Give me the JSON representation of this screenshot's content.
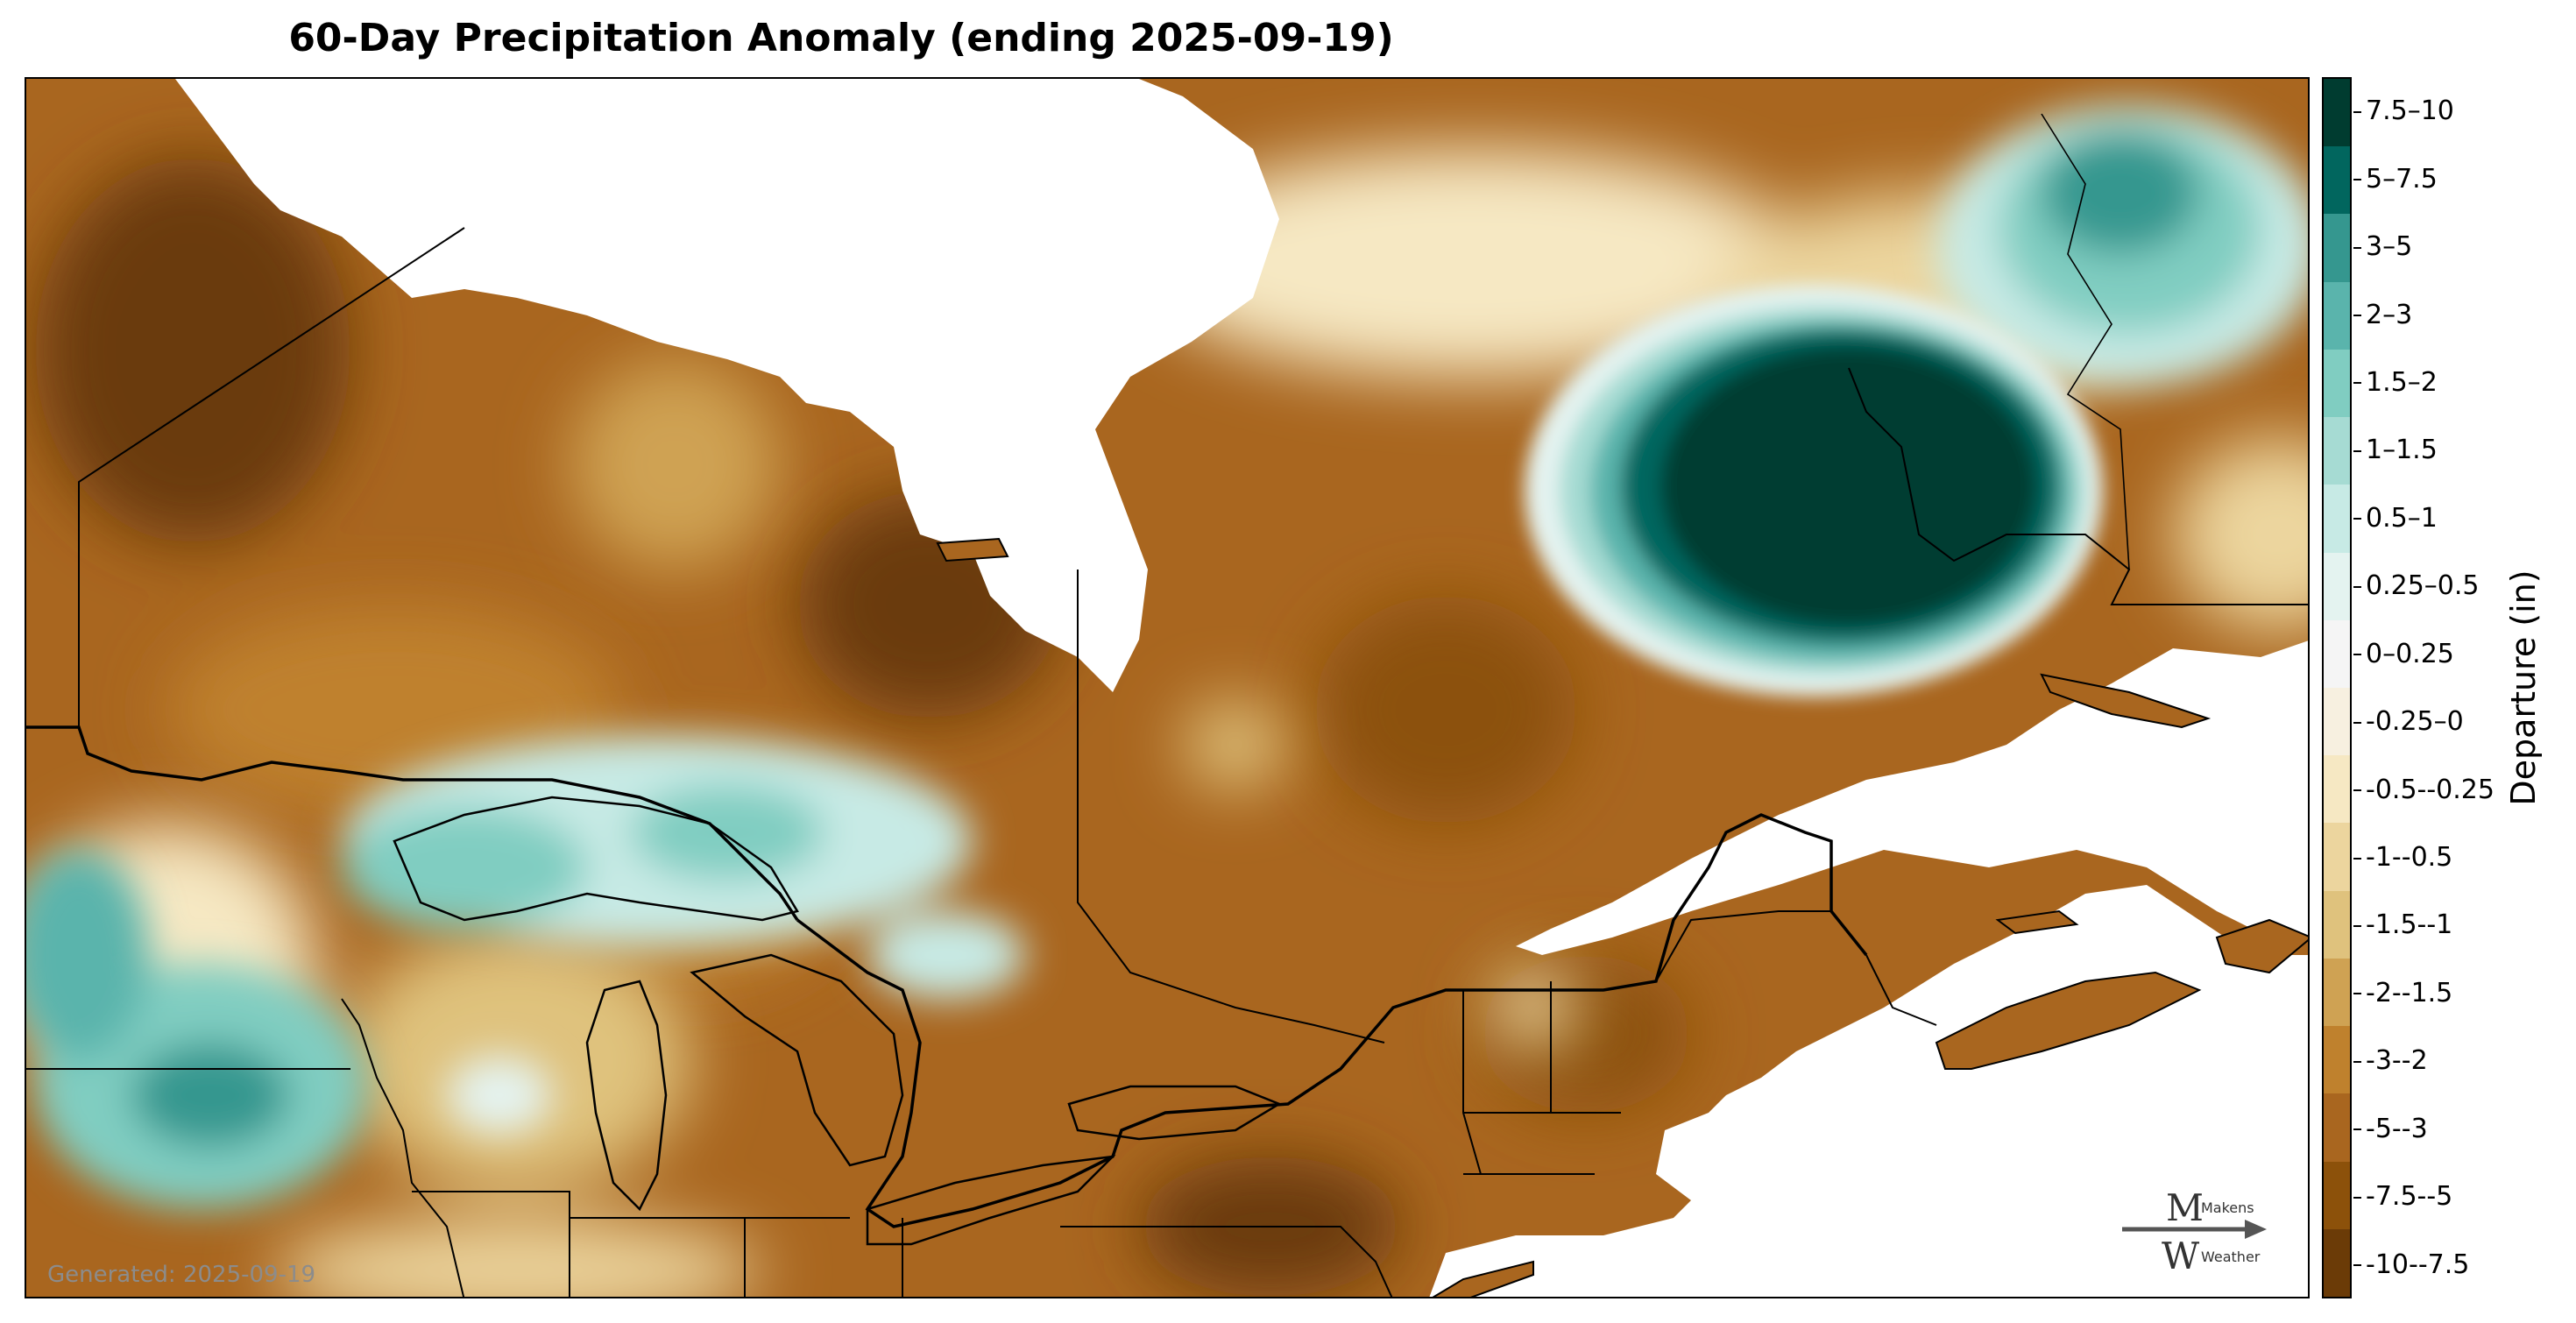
{
  "title": "60-Day Precipitation Anomaly (ending 2025-09-19)",
  "footer": {
    "generated_text": "Generated: 2025-09-19"
  },
  "logo": {
    "line1": "Makens",
    "line2": "Weather"
  },
  "colorbar": {
    "axis_label": "Departure (in)",
    "bins": [
      {
        "label": "7.5–10",
        "color": "#003c30"
      },
      {
        "label": "5–7.5",
        "color": "#01665e"
      },
      {
        "label": "3–5",
        "color": "#35978f"
      },
      {
        "label": "2–3",
        "color": "#5ab4ac"
      },
      {
        "label": "1.5–2",
        "color": "#80cdc1"
      },
      {
        "label": "1–1.5",
        "color": "#a6dbd3"
      },
      {
        "label": "0.5–1",
        "color": "#c7eae5"
      },
      {
        "label": "0.25–0.5",
        "color": "#e4f3f0"
      },
      {
        "label": "0–0.25",
        "color": "#f5f5f5"
      },
      {
        "label": "-0.25–0",
        "color": "#f7f0e0"
      },
      {
        "label": "-0.5--0.25",
        "color": "#f6e8c3"
      },
      {
        "label": "-1--0.5",
        "color": "#ecd59e"
      },
      {
        "label": "-1.5--1",
        "color": "#dfc27d"
      },
      {
        "label": "-2--1.5",
        "color": "#cfa253"
      },
      {
        "label": "-3--2",
        "color": "#bf812d"
      },
      {
        "label": "-5--3",
        "color": "#a9661f"
      },
      {
        "label": "-7.5--5",
        "color": "#8c510a"
      },
      {
        "label": "-10--7.5",
        "color": "#6b3b07"
      }
    ]
  },
  "map": {
    "water_color": "#ffffff",
    "boundary_color": "#000000",
    "anomaly_regions": [
      {
        "name": "far-north-quebec-wet",
        "bin": "7.5–10"
      },
      {
        "name": "labrador-wet",
        "bin": "2–3"
      },
      {
        "name": "lake-superior-wet",
        "bin": "1–1.5"
      },
      {
        "name": "minnesota-wet",
        "bin": "2–3"
      },
      {
        "name": "great-plains-dry",
        "bin": "-5--3"
      },
      {
        "name": "northeast-dry",
        "bin": "-5--3"
      }
    ]
  }
}
